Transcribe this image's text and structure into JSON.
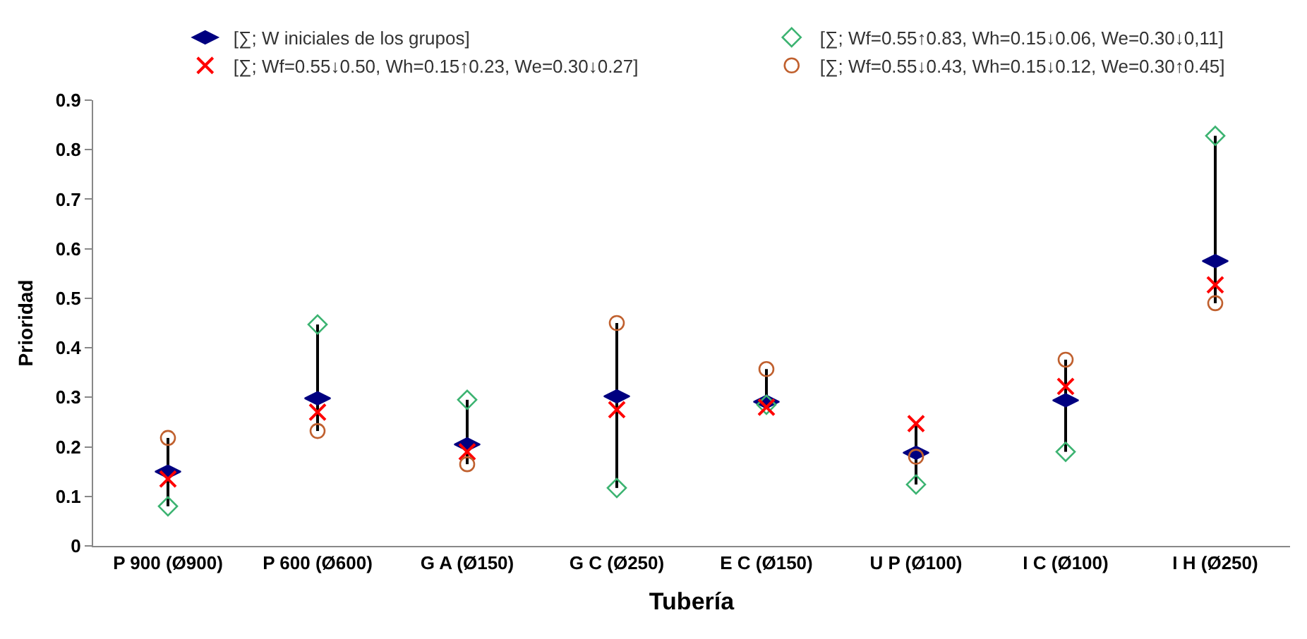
{
  "chart_data": {
    "type": "scatter",
    "xlabel": "Tubería",
    "ylabel": "Prioridad",
    "categories": [
      "P 900 (Ø900)",
      "P 600 (Ø600)",
      "G A (Ø150)",
      "G C (Ø250)",
      "E C (Ø150)",
      "U P (Ø100)",
      "I C (Ø100)",
      "I H (Ø250)"
    ],
    "series": [
      {
        "type": "bar",
        "color": "#000000",
        "base": [
          0.08,
          0.232,
          0.165,
          0.117,
          0.28,
          0.124,
          0.19,
          0.49
        ],
        "values": [
          0.138,
          0.215,
          0.13,
          0.333,
          0.077,
          0.123,
          0.186,
          0.338
        ]
      },
      {
        "name": "[∑; W iniciales de los grupos]",
        "color": "#000080",
        "values": [
          0.15,
          0.298,
          0.205,
          0.302,
          0.291,
          0.188,
          0.294,
          0.575
        ]
      },
      {
        "name": "[∑; Wf=0.55↑0.83, Wh=0.15↓0.06, We=0.30↓0,11]",
        "color": "#3cb371",
        "marker": "diamond",
        "values": [
          0.08,
          0.447,
          0.295,
          0.117,
          0.285,
          0.124,
          0.19,
          0.828
        ]
      },
      {
        "name": "[∑; Wf=0.55↓0.50, Wh=0.15↑0.23, We=0.30↓0.27]",
        "color": "#ff0000",
        "marker": "cross",
        "values": [
          0.135,
          0.27,
          0.19,
          0.275,
          0.28,
          0.247,
          0.322,
          0.527
        ]
      },
      {
        "name": "[∑; Wf=0.55↓0.43, Wh=0.15↓0.12, We=0.30↑0.45]",
        "color": "#c0602e",
        "marker": "circle",
        "values": [
          0.218,
          0.232,
          0.165,
          0.45,
          0.357,
          0.18,
          0.376,
          0.49
        ]
      }
    ],
    "ylim": [
      0,
      0.9
    ],
    "yticks": [
      0,
      0.1,
      0.2,
      0.3,
      0.4,
      0.5,
      0.6,
      0.7,
      0.8,
      0.9
    ],
    "grid": false,
    "legend": "top"
  }
}
